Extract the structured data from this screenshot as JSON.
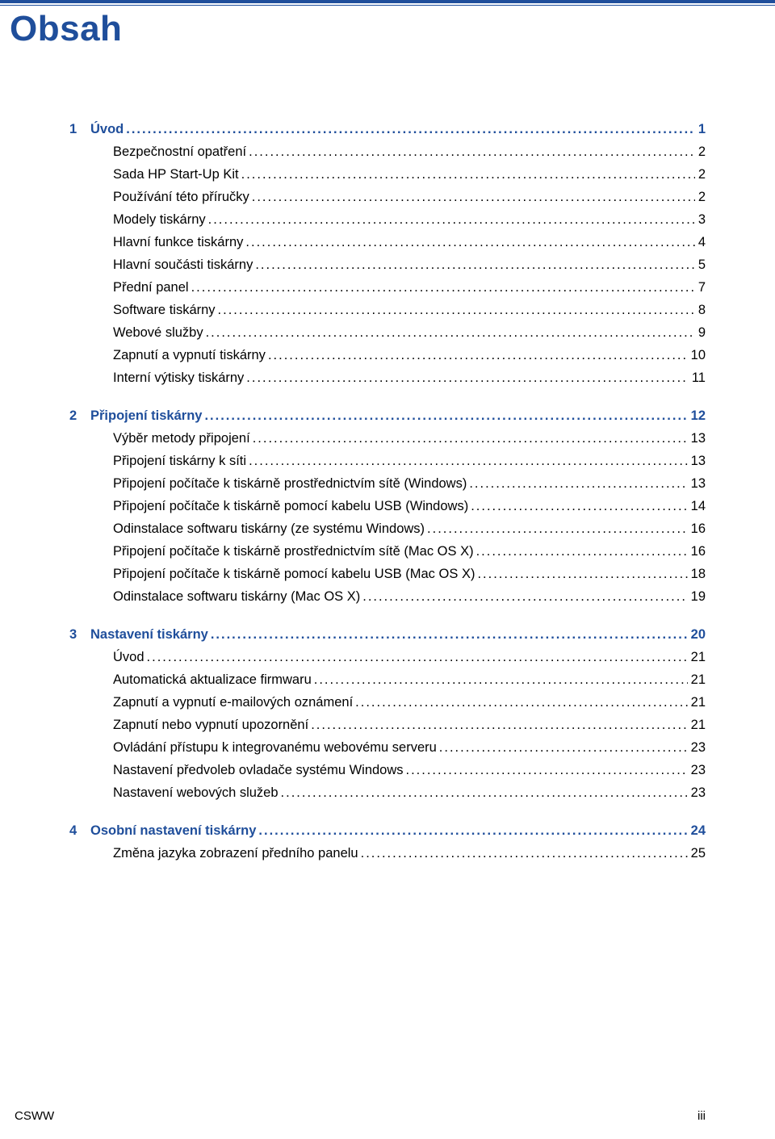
{
  "title": "Obsah",
  "title_color": "#1f4e9b",
  "rule_color": "#1f4e9b",
  "text_color": "#000000",
  "background_color": "#ffffff",
  "title_fontsize": 44,
  "body_fontsize": 16.5,
  "footer_left": "CSWW",
  "footer_right": "iii",
  "sections": [
    {
      "number": "1",
      "title": "Úvod",
      "page": "1",
      "items": [
        {
          "label": "Bezpečnostní opatření",
          "page": "2"
        },
        {
          "label": "Sada HP Start-Up Kit",
          "page": "2"
        },
        {
          "label": "Používání této příručky",
          "page": "2"
        },
        {
          "label": "Modely tiskárny",
          "page": "3"
        },
        {
          "label": "Hlavní funkce tiskárny",
          "page": "4"
        },
        {
          "label": "Hlavní součásti tiskárny",
          "page": "5"
        },
        {
          "label": "Přední panel",
          "page": "7"
        },
        {
          "label": "Software tiskárny",
          "page": "8"
        },
        {
          "label": "Webové služby",
          "page": "9"
        },
        {
          "label": "Zapnutí a vypnutí tiskárny",
          "page": "10"
        },
        {
          "label": "Interní výtisky tiskárny",
          "page": "11"
        }
      ]
    },
    {
      "number": "2",
      "title": "Připojení tiskárny",
      "page": "12",
      "items": [
        {
          "label": "Výběr metody připojení",
          "page": "13"
        },
        {
          "label": "Připojení tiskárny k síti",
          "page": "13"
        },
        {
          "label": "Připojení počítače k tiskárně prostřednictvím sítě (Windows)",
          "page": "13"
        },
        {
          "label": "Připojení počítače k tiskárně pomocí kabelu USB (Windows)",
          "page": "14"
        },
        {
          "label": "Odinstalace softwaru tiskárny (ze systému Windows)",
          "page": "16"
        },
        {
          "label": "Připojení počítače k tiskárně prostřednictvím sítě (Mac OS X)",
          "page": "16"
        },
        {
          "label": "Připojení počítače k tiskárně pomocí kabelu USB (Mac OS X)",
          "page": "18"
        },
        {
          "label": "Odinstalace softwaru tiskárny (Mac OS X)",
          "page": "19"
        }
      ]
    },
    {
      "number": "3",
      "title": "Nastavení tiskárny",
      "page": "20",
      "items": [
        {
          "label": "Úvod",
          "page": "21"
        },
        {
          "label": "Automatická aktualizace firmwaru",
          "page": "21"
        },
        {
          "label": "Zapnutí a vypnutí e-mailových oznámení",
          "page": "21"
        },
        {
          "label": "Zapnutí nebo vypnutí upozornění",
          "page": "21"
        },
        {
          "label": "Ovládání přístupu k integrovanému webovému serveru",
          "page": "23"
        },
        {
          "label": "Nastavení předvoleb ovladače systému Windows",
          "page": "23"
        },
        {
          "label": "Nastavení webových služeb",
          "page": "23"
        }
      ]
    },
    {
      "number": "4",
      "title": "Osobní nastavení tiskárny",
      "page": "24",
      "items": [
        {
          "label": "Změna jazyka zobrazení předního panelu",
          "page": "25"
        }
      ]
    }
  ]
}
